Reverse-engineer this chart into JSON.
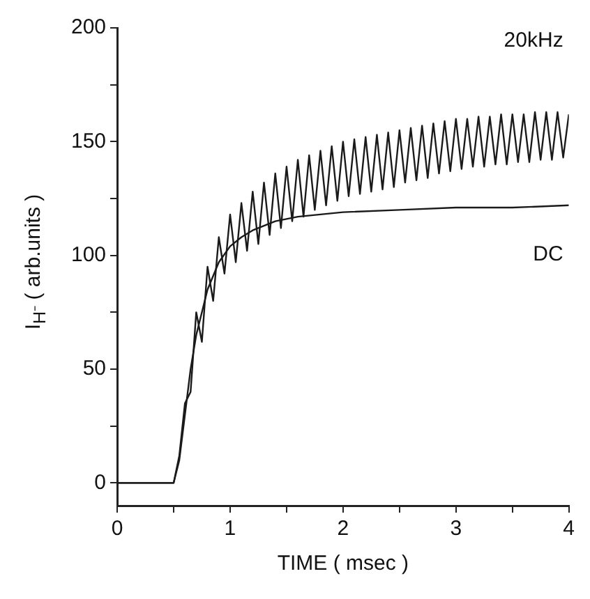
{
  "chart_data": {
    "type": "line",
    "xlabel": "TIME ( msec )",
    "ylabel": "I$_{H⁻}$ ( arb.units )",
    "xlim": [
      0,
      4
    ],
    "xticks": [
      0,
      {
        "value": 0.5,
        "label": null
      },
      1,
      {
        "value": 1.5,
        "label": null
      },
      2,
      {
        "value": 2.5,
        "label": null
      },
      3,
      {
        "value": 3.5,
        "label": null
      },
      4
    ],
    "ylim": [
      -10,
      200
    ],
    "yticks": [
      0,
      {
        "value": 25,
        "label": null
      },
      50,
      {
        "value": 75,
        "label": null
      },
      100,
      {
        "value": 125,
        "label": null
      },
      150,
      {
        "value": 175,
        "label": null
      },
      200
    ],
    "grid": false,
    "legend": false,
    "marker": "none",
    "line_style": "solid",
    "series": [
      {
        "name": "20kHz",
        "color": "#1a1a1a",
        "x": [
          0,
          0.5,
          0.55,
          0.6,
          0.65,
          0.7,
          0.75,
          0.8,
          0.85,
          0.9,
          0.95,
          1.0,
          1.05,
          1.1,
          1.15,
          1.2,
          1.25,
          1.3,
          1.35,
          1.4,
          1.45,
          1.5,
          1.55,
          1.6,
          1.65,
          1.7,
          1.75,
          1.8,
          1.85,
          1.9,
          1.95,
          2.0,
          2.05,
          2.1,
          2.15,
          2.2,
          2.25,
          2.3,
          2.35,
          2.4,
          2.45,
          2.5,
          2.55,
          2.6,
          2.65,
          2.7,
          2.75,
          2.8,
          2.85,
          2.9,
          2.95,
          3.0,
          3.05,
          3.1,
          3.15,
          3.2,
          3.25,
          3.3,
          3.35,
          3.4,
          3.45,
          3.5,
          3.55,
          3.6,
          3.65,
          3.7,
          3.75,
          3.8,
          3.85,
          3.9,
          3.95,
          4.0
        ],
        "values": [
          0,
          0,
          12,
          35,
          40,
          75,
          62,
          95,
          80,
          108,
          92,
          118,
          97,
          123,
          102,
          128,
          105,
          132,
          109,
          136,
          112,
          139,
          115,
          142,
          117,
          144,
          120,
          146,
          122,
          148,
          124,
          150,
          126,
          151,
          127,
          152,
          128,
          153,
          129,
          154,
          130,
          155,
          132,
          156,
          133,
          157,
          134,
          158,
          136,
          159,
          137,
          160,
          138,
          160,
          139,
          161,
          139,
          161,
          140,
          162,
          140,
          162,
          141,
          162,
          141,
          163,
          142,
          163,
          142,
          163,
          143,
          162
        ]
      },
      {
        "name": "DC",
        "color": "#1a1a1a",
        "x": [
          0,
          0.5,
          0.55,
          0.6,
          0.65,
          0.7,
          0.8,
          0.9,
          1.0,
          1.1,
          1.2,
          1.4,
          1.6,
          1.8,
          2.0,
          2.5,
          3.0,
          3.5,
          4.0
        ],
        "values": [
          0,
          0,
          10,
          30,
          50,
          65,
          85,
          97,
          104,
          108,
          111,
          115,
          117,
          118,
          119,
          120,
          121,
          121,
          122
        ]
      }
    ]
  }
}
